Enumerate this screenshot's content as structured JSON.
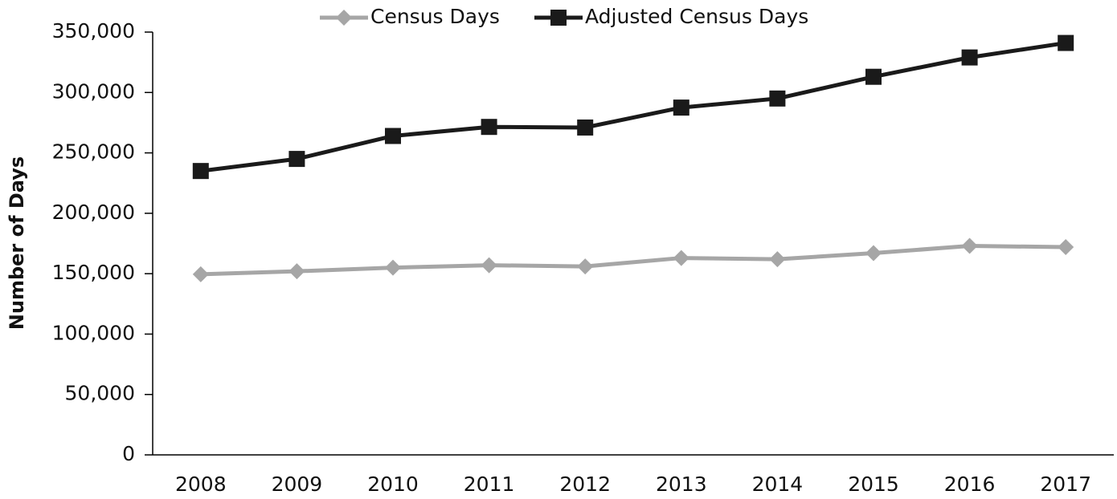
{
  "chart_data": {
    "type": "line",
    "ylabel": "Number of Days",
    "categories": [
      "2008",
      "2009",
      "2010",
      "2011",
      "2012",
      "2013",
      "2014",
      "2015",
      "2016",
      "2017"
    ],
    "series": [
      {
        "name": "Census Days",
        "color": "#a6a6a6",
        "marker": "diamond",
        "values": [
          149500,
          152000,
          155000,
          157000,
          156000,
          163000,
          162000,
          167000,
          173000,
          172000
        ]
      },
      {
        "name": "Adjusted Census Days",
        "color": "#1a1a1a",
        "marker": "square",
        "values": [
          235000,
          245000,
          264000,
          271500,
          271000,
          287500,
          295000,
          313000,
          329000,
          341000
        ]
      }
    ],
    "ylim": [
      0,
      350000
    ],
    "yticks": [
      0,
      {
        "value": 50000,
        "label": "50,000"
      },
      {
        "value": 100000,
        "label": "100,000"
      },
      {
        "value": 150000,
        "label": "150,000"
      },
      {
        "value": 200000,
        "label": "200,000"
      },
      {
        "value": 250000,
        "label": "250,000"
      },
      {
        "value": 300000,
        "label": "300,000"
      },
      {
        "value": 350000,
        "label": "350,000"
      }
    ],
    "grid": false,
    "legend": "top"
  }
}
